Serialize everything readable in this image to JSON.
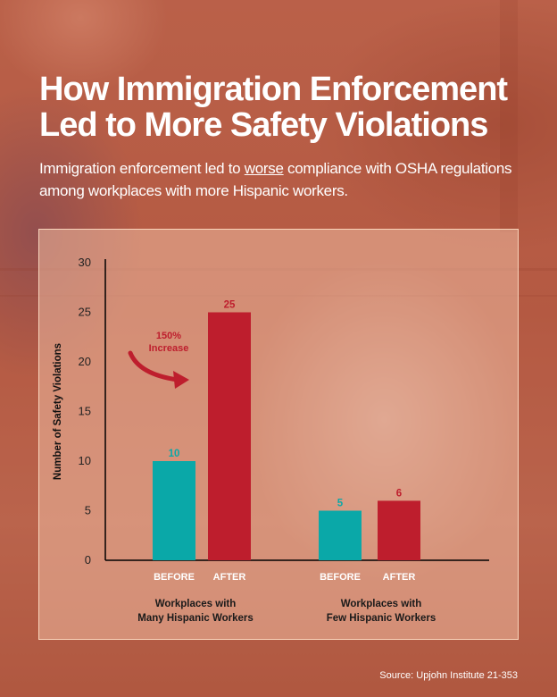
{
  "title_line1": "How Immigration Enforcement",
  "title_line2": "Led to More Safety Violations",
  "subtitle_pre": "Immigration enforcement led to ",
  "subtitle_emph": "worse",
  "subtitle_post": " compliance with OSHA regulations among workplaces with more Hispanic workers.",
  "source": "Source: Upjohn Institute 21-353",
  "colors": {
    "before": "#0aa8a8",
    "after": "#be1e2d",
    "annotation": "#be1e2d",
    "axis": "#000000"
  },
  "chart_data": {
    "type": "bar",
    "ylabel": "Number of Safety Violations",
    "xlabel": "",
    "ylim": [
      0,
      30
    ],
    "yticks": [
      0,
      5,
      10,
      15,
      20,
      25,
      30
    ],
    "grid": false,
    "groups": [
      {
        "name": "Workplaces with Many Hispanic Workers",
        "label_lines": [
          "Workplaces with",
          "Many Hispanic Workers"
        ],
        "bars": [
          {
            "label": "BEFORE",
            "value": 10,
            "data_label": "10",
            "color_key": "before"
          },
          {
            "label": "AFTER",
            "value": 25,
            "data_label": "25",
            "color_key": "after"
          }
        ]
      },
      {
        "name": "Workplaces with Few Hispanic Workers",
        "label_lines": [
          "Workplaces with",
          "Few Hispanic Workers"
        ],
        "bars": [
          {
            "label": "BEFORE",
            "value": 5,
            "data_label": "5",
            "color_key": "before"
          },
          {
            "label": "AFTER",
            "value": 6,
            "data_label": "6",
            "color_key": "after"
          }
        ]
      }
    ],
    "annotation": {
      "lines": [
        "150%",
        "Increase"
      ],
      "arrow": "curved-arrow-icon"
    }
  }
}
